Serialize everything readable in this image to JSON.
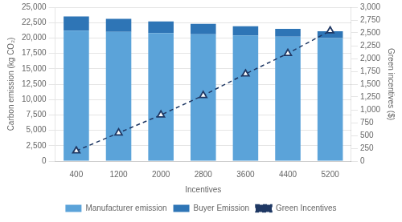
{
  "chart_data": {
    "type": "bar",
    "stacked": true,
    "grid": true,
    "legend": "bottom",
    "xlabel": "Incentives",
    "ylabel": "Carbon emission (kg CO₂)",
    "y2label": "Green incentives ($)",
    "categories": [
      "400",
      "1200",
      "2000",
      "2800",
      "3600",
      "4400",
      "5200"
    ],
    "series": [
      {
        "name": "Manufacturer emission",
        "color": "#5BA3D9",
        "values": [
          21200,
          21000,
          20800,
          20600,
          20400,
          20200,
          20000
        ]
      },
      {
        "name": "Buyer Emission",
        "color": "#2E75B6",
        "values": [
          2300,
          2100,
          1900,
          1700,
          1500,
          1300,
          1100
        ]
      },
      {
        "name": "Green Incentives",
        "type": "line",
        "axis": "y2",
        "color": "#1F3864",
        "marker": "triangle",
        "line_style": "dashed",
        "values": [
          200,
          550,
          900,
          1280,
          1700,
          2100,
          2540
        ]
      }
    ],
    "ylim": [
      0,
      25000
    ],
    "yticks": [
      0,
      {
        "value": 2500,
        "label": "2,500"
      },
      {
        "value": 5000,
        "label": "5,000"
      },
      {
        "value": 7500,
        "label": "7,500"
      },
      {
        "value": 10000,
        "label": "10,000"
      },
      {
        "value": 12500,
        "label": "12,500"
      },
      {
        "value": 15000,
        "label": "15,000"
      },
      {
        "value": 17500,
        "label": "17,500"
      },
      {
        "value": 20000,
        "label": "20,000"
      },
      {
        "value": 22500,
        "label": "22,500"
      },
      {
        "value": 25000,
        "label": "25,000"
      }
    ],
    "y2lim": [
      0,
      3000
    ],
    "y2ticks": [
      0,
      250,
      500,
      750,
      {
        "value": 1000,
        "label": "1,000"
      },
      {
        "value": 1250,
        "label": "1,250"
      },
      {
        "value": 1500,
        "label": "1,500"
      },
      {
        "value": 1750,
        "label": "1,750"
      },
      {
        "value": 2000,
        "label": "2,000"
      },
      {
        "value": 2250,
        "label": "2,250"
      },
      {
        "value": 2500,
        "label": "2,500"
      },
      {
        "value": 2750,
        "label": "2,750"
      },
      {
        "value": 3000,
        "label": "3,000"
      }
    ]
  }
}
